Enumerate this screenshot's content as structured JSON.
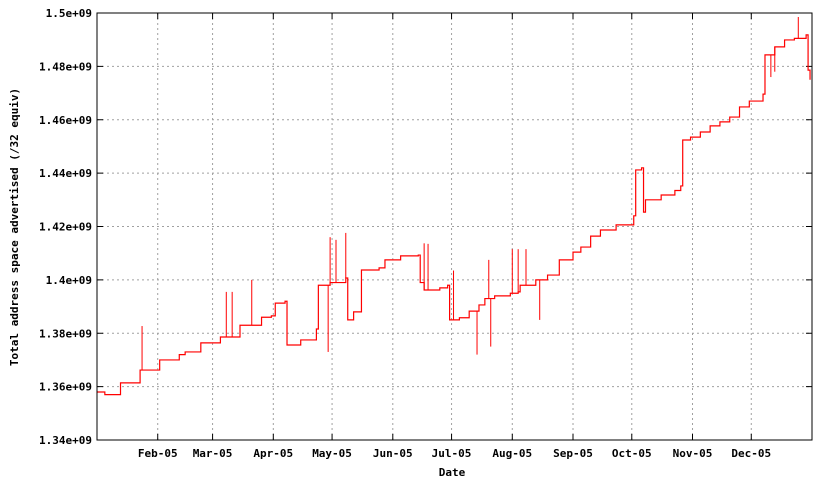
{
  "chart_data": {
    "type": "line",
    "title": "",
    "xlabel": "Date",
    "ylabel": "Total address space advertised (/32 equiv)",
    "xlim": [
      "2005-01-01",
      "2006-01-01"
    ],
    "ylim": [
      1340000000.0,
      1500000000.0
    ],
    "grid": true,
    "line_color": "#ff0000",
    "y_ticks": [
      {
        "value": 1340000000.0,
        "label": "1.34e+09"
      },
      {
        "value": 1360000000.0,
        "label": "1.36e+09"
      },
      {
        "value": 1380000000.0,
        "label": "1.38e+09"
      },
      {
        "value": 1400000000.0,
        "label": "1.4e+09"
      },
      {
        "value": 1420000000.0,
        "label": "1.42e+09"
      },
      {
        "value": 1440000000.0,
        "label": "1.44e+09"
      },
      {
        "value": 1460000000.0,
        "label": "1.46e+09"
      },
      {
        "value": 1480000000.0,
        "label": "1.48e+09"
      },
      {
        "value": 1500000000.0,
        "label": "1.5e+09"
      }
    ],
    "x_ticks": [
      {
        "value": "2005-02-01",
        "label": "Feb-05"
      },
      {
        "value": "2005-03-01",
        "label": "Mar-05"
      },
      {
        "value": "2005-04-01",
        "label": "Apr-05"
      },
      {
        "value": "2005-05-01",
        "label": "May-05"
      },
      {
        "value": "2005-06-01",
        "label": "Jun-05"
      },
      {
        "value": "2005-07-01",
        "label": "Jul-05"
      },
      {
        "value": "2005-08-01",
        "label": "Aug-05"
      },
      {
        "value": "2005-09-01",
        "label": "Sep-05"
      },
      {
        "value": "2005-10-01",
        "label": "Oct-05"
      },
      {
        "value": "2005-11-01",
        "label": "Nov-05"
      },
      {
        "value": "2005-12-01",
        "label": "Dec-05"
      }
    ],
    "series": [
      {
        "points": [
          [
            "2005-01-01",
            1358000000.0
          ],
          [
            "2005-01-05",
            1357000000.0
          ],
          [
            "2005-01-13",
            1361400000.0
          ],
          [
            "2005-01-23",
            1366200000.0
          ],
          [
            "2005-02-02",
            1370000000.0
          ],
          [
            "2005-02-12",
            1372000000.0
          ],
          [
            "2005-02-15",
            1373000000.0
          ],
          [
            "2005-02-23",
            1376400000.0
          ],
          [
            "2005-03-05",
            1378600000.0
          ],
          [
            "2005-03-15",
            1383000000.0
          ],
          [
            "2005-03-26",
            1386000000.0
          ],
          [
            "2005-03-31",
            1386500000.0
          ],
          [
            "2005-04-02",
            1391300000.0
          ],
          [
            "2005-04-07",
            1392000000.0
          ],
          [
            "2005-04-08",
            1375600000.0
          ],
          [
            "2005-04-15",
            1377500000.0
          ],
          [
            "2005-04-23",
            1381600000.0
          ],
          [
            "2005-04-24",
            1398000000.0
          ],
          [
            "2005-04-30",
            1399000000.0
          ],
          [
            "2005-05-08",
            1400700000.0
          ],
          [
            "2005-05-09",
            1385000000.0
          ],
          [
            "2005-05-12",
            1388000000.0
          ],
          [
            "2005-05-15",
            1388000000.0
          ],
          [
            "2005-05-16",
            1403700000.0
          ],
          [
            "2005-05-25",
            1404500000.0
          ],
          [
            "2005-05-28",
            1407500000.0
          ],
          [
            "2005-06-05",
            1409000000.0
          ],
          [
            "2005-06-14",
            1409300000.0
          ],
          [
            "2005-06-15",
            1399000000.0
          ],
          [
            "2005-06-17",
            1396200000.0
          ],
          [
            "2005-06-25",
            1397000000.0
          ],
          [
            "2005-06-29",
            1398000000.0
          ],
          [
            "2005-06-30",
            1385000000.0
          ],
          [
            "2005-07-05",
            1385800000.0
          ],
          [
            "2005-07-10",
            1388300000.0
          ],
          [
            "2005-07-15",
            1390600000.0
          ],
          [
            "2005-07-18",
            1393000000.0
          ],
          [
            "2005-07-23",
            1394000000.0
          ],
          [
            "2005-07-31",
            1395000000.0
          ],
          [
            "2005-08-04",
            1395500000.0
          ],
          [
            "2005-08-05",
            1398000000.0
          ],
          [
            "2005-08-13",
            1400000000.0
          ],
          [
            "2005-08-19",
            1401800000.0
          ],
          [
            "2005-08-25",
            1407500000.0
          ],
          [
            "2005-09-01",
            1410400000.0
          ],
          [
            "2005-09-05",
            1412300000.0
          ],
          [
            "2005-09-10",
            1416400000.0
          ],
          [
            "2005-09-15",
            1418700000.0
          ],
          [
            "2005-09-23",
            1420600000.0
          ],
          [
            "2005-10-02",
            1424000000.0
          ],
          [
            "2005-10-03",
            1441200000.0
          ],
          [
            "2005-10-06",
            1442000000.0
          ],
          [
            "2005-10-07",
            1425400000.0
          ],
          [
            "2005-10-08",
            1430000000.0
          ],
          [
            "2005-10-16",
            1431800000.0
          ],
          [
            "2005-10-23",
            1433500000.0
          ],
          [
            "2005-10-26",
            1435200000.0
          ],
          [
            "2005-10-27",
            1452400000.0
          ],
          [
            "2005-10-31",
            1453500000.0
          ],
          [
            "2005-11-05",
            1455400000.0
          ],
          [
            "2005-11-10",
            1457700000.0
          ],
          [
            "2005-11-15",
            1459200000.0
          ],
          [
            "2005-11-20",
            1461000000.0
          ],
          [
            "2005-11-25",
            1464800000.0
          ],
          [
            "2005-11-30",
            1467000000.0
          ],
          [
            "2005-12-07",
            1469600000.0
          ],
          [
            "2005-12-08",
            1484300000.0
          ],
          [
            "2005-12-13",
            1487300000.0
          ],
          [
            "2005-12-18",
            1489900000.0
          ],
          [
            "2005-12-23",
            1490500000.0
          ],
          [
            "2005-12-29",
            1491800000.0
          ],
          [
            "2005-12-30",
            1478600000.0
          ],
          [
            "2005-12-31",
            1475000000.0
          ]
        ],
        "spikes": [
          [
            "2005-01-24",
            1382700000.0
          ],
          [
            "2005-03-08",
            1395500000.0
          ],
          [
            "2005-03-11",
            1395500000.0
          ],
          [
            "2005-03-21",
            1400000000.0
          ],
          [
            "2005-04-29",
            1373000000.0
          ],
          [
            "2005-04-30",
            1416000000.0
          ],
          [
            "2005-05-03",
            1415000000.0
          ],
          [
            "2005-05-08",
            1417600000.0
          ],
          [
            "2005-06-17",
            1413700000.0
          ],
          [
            "2005-06-19",
            1413500000.0
          ],
          [
            "2005-07-02",
            1403500000.0
          ],
          [
            "2005-07-14",
            1372000000.0
          ],
          [
            "2005-07-20",
            1407500000.0
          ],
          [
            "2005-07-21",
            1375000000.0
          ],
          [
            "2005-08-01",
            1411500000.0
          ],
          [
            "2005-08-04",
            1411500000.0
          ],
          [
            "2005-08-08",
            1411500000.0
          ],
          [
            "2005-08-15",
            1385000000.0
          ],
          [
            "2005-12-11",
            1476000000.0
          ],
          [
            "2005-12-13",
            1478000000.0
          ],
          [
            "2005-12-25",
            1498500000.0
          ]
        ]
      }
    ]
  }
}
